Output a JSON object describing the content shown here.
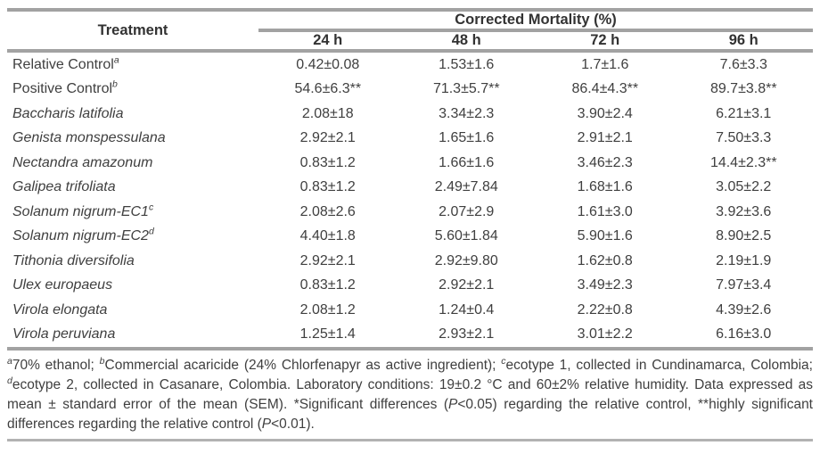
{
  "table": {
    "treatment_header": "Treatment",
    "group_header": "Corrected Mortality (%)",
    "time_headers": [
      "24 h",
      "48 h",
      "72 h",
      "96 h"
    ],
    "rows": [
      {
        "treatment": "Relative Control",
        "sup": "a",
        "italic": false,
        "values": [
          "0.42±0.08",
          "1.53±1.6",
          "1.7±1.6",
          "7.6±3.3"
        ]
      },
      {
        "treatment": "Positive Control",
        "sup": "b",
        "italic": false,
        "values": [
          "54.6±6.3**",
          "71.3±5.7**",
          "86.4±4.3**",
          "89.7±3.8**"
        ]
      },
      {
        "treatment": "Baccharis latifolia",
        "sup": "",
        "italic": true,
        "values": [
          "2.08±18",
          "3.34±2.3",
          "3.90±2.4",
          "6.21±3.1"
        ]
      },
      {
        "treatment": "Genista monspessulana",
        "sup": "",
        "italic": true,
        "values": [
          "2.92±2.1",
          "1.65±1.6",
          "2.91±2.1",
          "7.50±3.3"
        ]
      },
      {
        "treatment": "Nectandra amazonum",
        "sup": "",
        "italic": true,
        "values": [
          "0.83±1.2",
          "1.66±1.6",
          "3.46±2.3",
          "14.4±2.3**"
        ]
      },
      {
        "treatment": "Galipea trifoliata",
        "sup": "",
        "italic": true,
        "values": [
          "0.83±1.2",
          "2.49±7.84",
          "1.68±1.6",
          "3.05±2.2"
        ]
      },
      {
        "treatment": "Solanum nigrum-EC1",
        "sup": "c",
        "italic": true,
        "values": [
          "2.08±2.6",
          "2.07±2.9",
          "1.61±3.0",
          "3.92±3.6"
        ]
      },
      {
        "treatment": "Solanum nigrum-EC2",
        "sup": "d",
        "italic": true,
        "values": [
          "4.40±1.8",
          "5.60±1.84",
          "5.90±1.6",
          "8.90±2.5"
        ]
      },
      {
        "treatment": "Tithonia diversifolia",
        "sup": "",
        "italic": true,
        "values": [
          "2.92±2.1",
          "2.92±9.80",
          "1.62±0.8",
          "2.19±1.9"
        ]
      },
      {
        "treatment": "Ulex europaeus",
        "sup": "",
        "italic": true,
        "values": [
          "0.83±1.2",
          "2.92±2.1",
          "3.49±2.3",
          "7.97±3.4"
        ]
      },
      {
        "treatment": "Virola elongata",
        "sup": "",
        "italic": true,
        "values": [
          "2.08±1.2",
          "1.24±0.4",
          "2.22±0.8",
          "4.39±2.6"
        ]
      },
      {
        "treatment": "Virola peruviana",
        "sup": "",
        "italic": true,
        "values": [
          "1.25±1.4",
          "2.93±2.1",
          "3.01±2.2",
          "6.16±3.0"
        ]
      }
    ]
  },
  "footnote": {
    "segments": [
      {
        "text": "a",
        "style": "sup-italic"
      },
      {
        "text": "70% ethanol; ",
        "style": "normal"
      },
      {
        "text": "b",
        "style": "sup-italic"
      },
      {
        "text": "Commercial acaricide (24% Chlorfenapyr as active ingredient); ",
        "style": "normal"
      },
      {
        "text": "c",
        "style": "sup-italic"
      },
      {
        "text": "ecotype 1, collected in Cundinamarca, Colombia; ",
        "style": "normal"
      },
      {
        "text": "d",
        "style": "sup-italic"
      },
      {
        "text": "ecotype 2, collected in Casanare, Colombia. Laboratory conditions: 19±0.2 °C and 60±2% relative humidity. Data expressed as mean ± standard error of the mean (SEM). *Significant differences (",
        "style": "normal"
      },
      {
        "text": "P",
        "style": "italic"
      },
      {
        "text": "<0.05) regarding the relative control, **highly significant differences regarding the relative control (",
        "style": "normal"
      },
      {
        "text": "P",
        "style": "italic"
      },
      {
        "text": "<0.01).",
        "style": "normal"
      }
    ]
  },
  "colors": {
    "rule": "#a2a2a2",
    "text": "#3f3f3f",
    "background": "#ffffff"
  }
}
